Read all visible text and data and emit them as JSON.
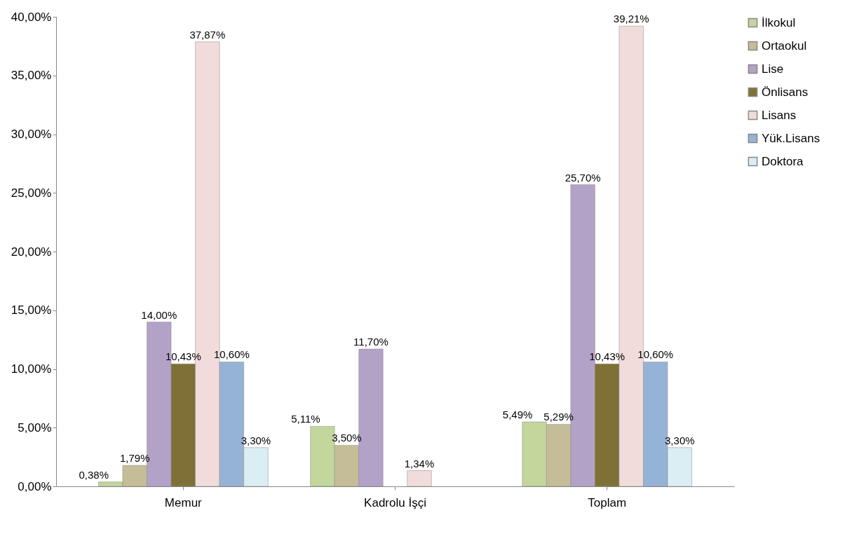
{
  "chart_data": {
    "type": "bar",
    "categories": [
      "Memur",
      "Kadrolu İşçi",
      "Toplam"
    ],
    "series": [
      {
        "name": "İlkokul",
        "color": "#c3d69b",
        "values": [
          0.38,
          5.11,
          5.49
        ],
        "value_labels": [
          "0,38%",
          "5,11%",
          "5,49%"
        ]
      },
      {
        "name": "Ortaokul",
        "color": "#c4bd97",
        "values": [
          1.79,
          3.5,
          5.29
        ],
        "value_labels": [
          "1,79%",
          "3,50%",
          "5,29%"
        ]
      },
      {
        "name": "Lise",
        "color": "#b3a2c7",
        "values": [
          14.0,
          11.7,
          25.7
        ],
        "value_labels": [
          "14,00%",
          "11,70%",
          "25,70%"
        ]
      },
      {
        "name": "Önlisans",
        "color": "#7f7035",
        "values": [
          10.43,
          null,
          10.43
        ],
        "value_labels": [
          "10,43%",
          null,
          "10,43%"
        ]
      },
      {
        "name": "Lisans",
        "color": "#f2dcdb",
        "values": [
          37.87,
          1.34,
          39.21
        ],
        "value_labels": [
          "37,87%",
          "1,34%",
          "39,21%"
        ]
      },
      {
        "name": "Yük.Lisans",
        "color": "#95b3d7",
        "values": [
          10.6,
          null,
          10.6
        ],
        "value_labels": [
          "10,60%",
          null,
          "10,60%"
        ]
      },
      {
        "name": "Doktora",
        "color": "#dbeef4",
        "values": [
          3.3,
          null,
          3.3
        ],
        "value_labels": [
          "3,30%",
          null,
          "3,30%"
        ]
      }
    ],
    "ylim": [
      0,
      40
    ],
    "yticks": [
      {
        "value": 0,
        "label": "0,00%"
      },
      {
        "value": 5,
        "label": "5,00%"
      },
      {
        "value": 10,
        "label": "10,00%"
      },
      {
        "value": 15,
        "label": "15,00%"
      },
      {
        "value": 20,
        "label": "20,00%"
      },
      {
        "value": 25,
        "label": "25,00%"
      },
      {
        "value": 30,
        "label": "30,00%"
      },
      {
        "value": 35,
        "label": "35,00%"
      },
      {
        "value": 40,
        "label": "40,00%"
      }
    ],
    "grid": false,
    "legend": "right"
  }
}
